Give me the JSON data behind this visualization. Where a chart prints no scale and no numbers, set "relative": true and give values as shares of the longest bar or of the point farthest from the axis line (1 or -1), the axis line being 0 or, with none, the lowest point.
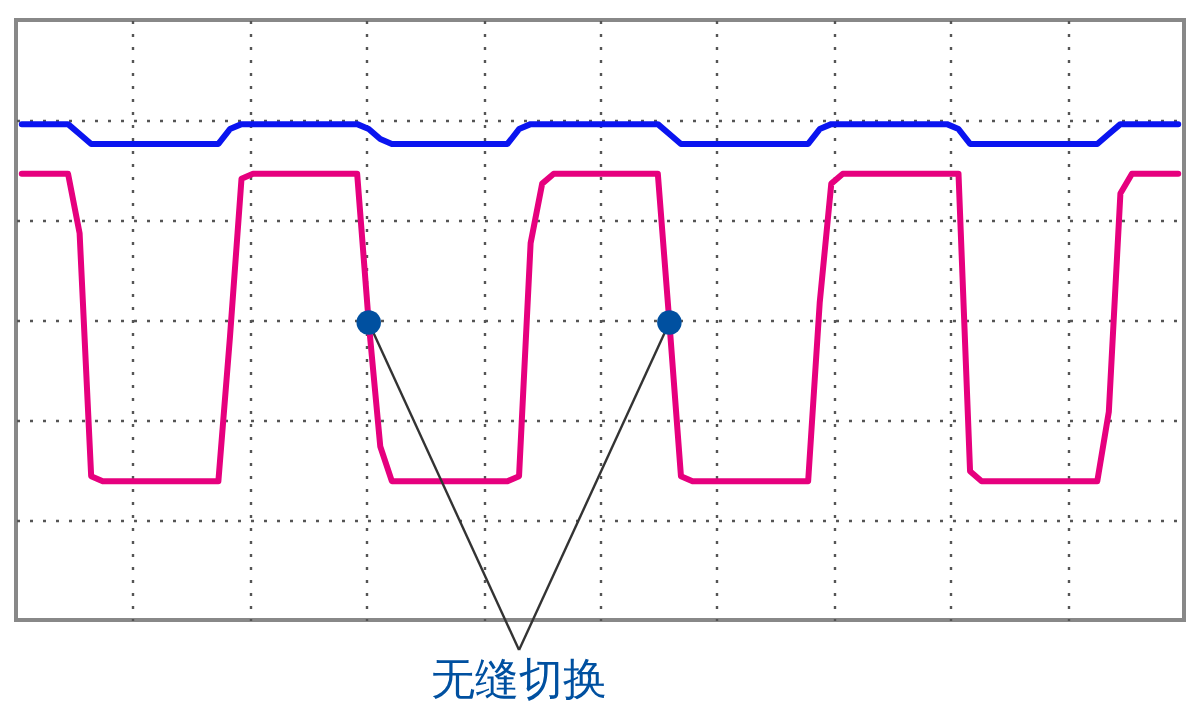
{
  "chart_data": {
    "type": "line",
    "relative": true,
    "grid": true,
    "categories": [
      null,
      null,
      null,
      null,
      null,
      null,
      null,
      null,
      null,
      null,
      null,
      null,
      null,
      null,
      null,
      null,
      null,
      null,
      null,
      null,
      null,
      null,
      null,
      null,
      null,
      null,
      null,
      null,
      null,
      null,
      null,
      null,
      null,
      null,
      null,
      null,
      null,
      null,
      null,
      null,
      null,
      null,
      null,
      null,
      null,
      null,
      null,
      null,
      null,
      null,
      null,
      null,
      null,
      null,
      null,
      null,
      null,
      null,
      null,
      null,
      null,
      null,
      null,
      null,
      null,
      null,
      null,
      null,
      null,
      null,
      null,
      null,
      null,
      null,
      null,
      null,
      null,
      null,
      null,
      null,
      null,
      null,
      null,
      null,
      null,
      null,
      null,
      null,
      null,
      null,
      null,
      null,
      null,
      null,
      null,
      null,
      null,
      null,
      null,
      null,
      null
    ],
    "annotations": [
      "无缝切换"
    ],
    "series": [
      {
        "color": "#0a14f0",
        "values": [
          1,
          1,
          1,
          1,
          1,
          0.98,
          0.96,
          0.96,
          0.96,
          0.96,
          0.96,
          0.96,
          0.96,
          0.96,
          0.96,
          0.96,
          0.96,
          0.96,
          0.99,
          1,
          1,
          1,
          1,
          1,
          1,
          1,
          1,
          1,
          1,
          1,
          0.99,
          0.97,
          0.96,
          0.96,
          0.96,
          0.96,
          0.96,
          0.96,
          0.96,
          0.96,
          0.96,
          0.96,
          0.96,
          0.99,
          1,
          1,
          1,
          1,
          1,
          1,
          1,
          1,
          1,
          1,
          1,
          1,
          0.98,
          0.96,
          0.96,
          0.96,
          0.96,
          0.96,
          0.96,
          0.96,
          0.96,
          0.96,
          0.96,
          0.96,
          0.96,
          0.99,
          1,
          1,
          1,
          1,
          1,
          1,
          1,
          1,
          1,
          1,
          1,
          0.99,
          0.96,
          0.96,
          0.96,
          0.96,
          0.96,
          0.96,
          0.96,
          0.96,
          0.96,
          0.96,
          0.96,
          0.96,
          0.98,
          1,
          1,
          1,
          1,
          1,
          1
        ]
      },
      {
        "color": "#e6007e",
        "values": [
          0.9,
          0.9,
          0.9,
          0.9,
          0.9,
          0.78,
          0.29,
          0.28,
          0.28,
          0.28,
          0.28,
          0.28,
          0.28,
          0.28,
          0.28,
          0.28,
          0.28,
          0.28,
          0.57,
          0.89,
          0.9,
          0.9,
          0.9,
          0.9,
          0.9,
          0.9,
          0.9,
          0.9,
          0.9,
          0.9,
          0.6,
          0.35,
          0.28,
          0.28,
          0.28,
          0.28,
          0.28,
          0.28,
          0.28,
          0.28,
          0.28,
          0.28,
          0.28,
          0.29,
          0.76,
          0.88,
          0.9,
          0.9,
          0.9,
          0.9,
          0.9,
          0.9,
          0.9,
          0.9,
          0.9,
          0.9,
          0.6,
          0.29,
          0.28,
          0.28,
          0.28,
          0.28,
          0.28,
          0.28,
          0.28,
          0.28,
          0.28,
          0.28,
          0.28,
          0.64,
          0.88,
          0.9,
          0.9,
          0.9,
          0.9,
          0.9,
          0.9,
          0.9,
          0.9,
          0.9,
          0.9,
          0.9,
          0.3,
          0.28,
          0.28,
          0.28,
          0.28,
          0.28,
          0.28,
          0.28,
          0.28,
          0.28,
          0.28,
          0.28,
          0.42,
          0.86,
          0.9,
          0.9,
          0.9,
          0.9,
          0.9
        ]
      }
    ]
  }
}
